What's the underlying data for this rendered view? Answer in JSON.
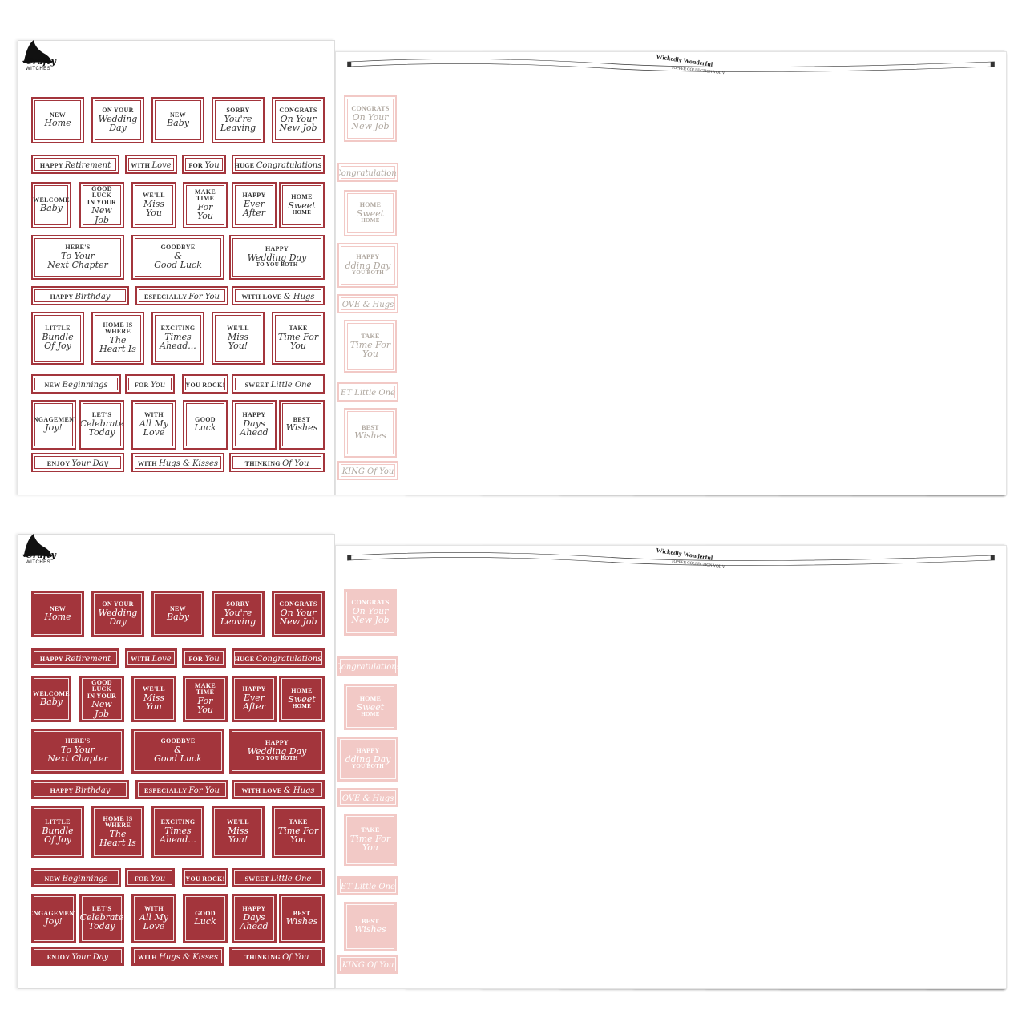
{
  "brand": {
    "name_line1": "Crafty",
    "name_line2": "WITCHES"
  },
  "banner": {
    "title": "Wickedly Wonderful",
    "subtitle": "TOPPER COLLECTION VOL V"
  },
  "colors": {
    "first": "#a3353c",
    "sheets": [
      "#f2c9c6",
      "#e6bd57",
      "#ead7bf",
      "#6f7068",
      "#c23a2e",
      "#6ea5cc",
      "#ead09a",
      "#3f7d69",
      "#b98680"
    ]
  },
  "labels": {
    "new_home": [
      "NEW",
      "Home",
      ""
    ],
    "wedding_day": [
      "ON YOUR",
      "Wedding\nDay",
      ""
    ],
    "new_baby": [
      "NEW",
      "Baby",
      ""
    ],
    "leaving": [
      "SORRY",
      "You're\nLeaving",
      ""
    ],
    "new_job": [
      "CONGRATS",
      "On Your\nNew Job",
      ""
    ],
    "retirement": [
      "HAPPY",
      "Retirement",
      ""
    ],
    "with_love": [
      "WITH",
      "Love",
      ""
    ],
    "for_you": [
      "FOR",
      "You",
      ""
    ],
    "huge_congrats": [
      "HUGE",
      "Congratulations",
      ""
    ],
    "welcome_baby": [
      "WELCOME",
      "Baby",
      ""
    ],
    "good_luck_job": [
      "GOOD LUCK\nIN YOUR",
      "New\nJob",
      ""
    ],
    "miss_you": [
      "WE'LL",
      "Miss\nYou",
      ""
    ],
    "make_time": [
      "MAKE TIME",
      "For\nYou",
      ""
    ],
    "ever_after": [
      "HAPPY",
      "Ever\nAfter",
      ""
    ],
    "home_sweet": [
      "HOME",
      "Sweet",
      "HOME"
    ],
    "next_chapter": [
      "HERE'S",
      "To Your\nNext Chapter",
      ""
    ],
    "goodbye": [
      "GOODBYE",
      "&\nGood Luck",
      ""
    ],
    "wedding_both": [
      "HAPPY",
      "Wedding Day",
      "TO YOU BOTH"
    ],
    "birthday": [
      "HAPPY",
      "Birthday",
      ""
    ],
    "especially": [
      "ESPECIALLY",
      "For You",
      ""
    ],
    "love_hugs": [
      "WITH LOVE",
      "& Hugs",
      ""
    ],
    "bundle": [
      "LITTLE",
      "Bundle\nOf Joy",
      ""
    ],
    "heart": [
      "HOME IS\nWHERE",
      "The\nHeart Is",
      ""
    ],
    "exciting": [
      "EXCITING",
      "Times\nAhead...",
      ""
    ],
    "miss_you2": [
      "WE'LL",
      "Miss\nYou!",
      ""
    ],
    "take_time": [
      "TAKE",
      "Time For\nYou",
      ""
    ],
    "beginnings": [
      "NEW",
      "Beginnings",
      ""
    ],
    "for_you2": [
      "FOR",
      "You",
      ""
    ],
    "rock": [
      "",
      "",
      "YOU ROCK!"
    ],
    "little_one": [
      "SWEET",
      "Little One",
      ""
    ],
    "engagement": [
      "ENGAGEMENT",
      "Joy!",
      ""
    ],
    "celebrate": [
      "LET'S",
      "Celebrate\nToday",
      ""
    ],
    "all_my_love": [
      "WITH",
      "All My\nLove",
      ""
    ],
    "good_luck": [
      "GOOD",
      "Luck",
      ""
    ],
    "days_ahead": [
      "HAPPY",
      "Days\nAhead",
      ""
    ],
    "best_wishes": [
      "BEST",
      "Wishes",
      ""
    ],
    "enjoy": [
      "ENJOY",
      "Your Day",
      ""
    ],
    "hugs_kisses": [
      "WITH",
      "Hugs & Kisses",
      ""
    ],
    "thinking": [
      "THINKING",
      "Of You",
      ""
    ],
    "congratulations": [
      "",
      "Congratulations",
      ""
    ],
    "wedding_both_partial": [
      "HAPPY",
      "dding Day",
      "YOU BOTH"
    ],
    "love_hugs_partial": [
      "",
      "OVE & Hugs",
      ""
    ],
    "little_one_partial": [
      "",
      "ET Little One",
      ""
    ],
    "thinking_partial": [
      "",
      "KING Of You",
      ""
    ]
  }
}
